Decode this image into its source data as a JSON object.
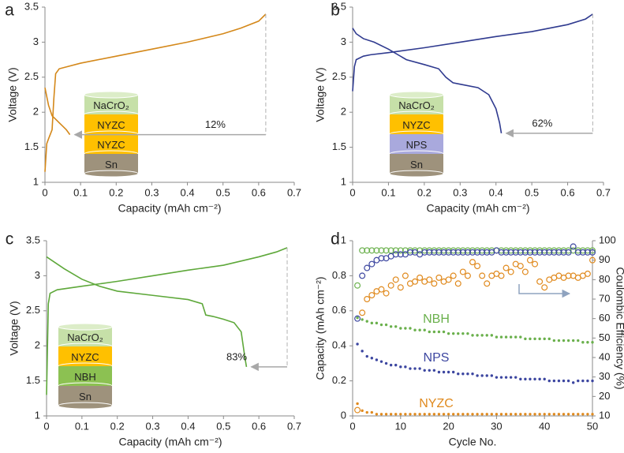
{
  "chart_data": [
    {
      "type": "line",
      "label": "a",
      "xlabel": "Capacity (mAh cm⁻²)",
      "ylabel": "Voltage (V)",
      "xlim": [
        0,
        0.7
      ],
      "ylim": [
        1,
        3.5
      ],
      "xticks": [
        0,
        0.1,
        0.2,
        0.3,
        0.4,
        0.5,
        0.6,
        0.7
      ],
      "yticks": [
        1,
        1.5,
        2,
        2.5,
        3,
        3.5
      ],
      "annotation": "12%",
      "stack": [
        {
          "label": "NaCrO₂",
          "color": "#c6e0a8"
        },
        {
          "label": "NYZC",
          "color": "#ffc000"
        },
        {
          "label": "NYZC",
          "color": "#ffc000"
        },
        {
          "label": "Sn",
          "color": "#9e927c"
        }
      ],
      "series": [
        {
          "color": "#d4881a",
          "x": [
            0,
            0.005,
            0.01,
            0.02,
            0.025,
            0.03,
            0.04,
            0.1,
            0.2,
            0.3,
            0.4,
            0.5,
            0.55,
            0.6,
            0.62
          ],
          "values": [
            1.15,
            1.55,
            1.62,
            1.75,
            2.2,
            2.55,
            2.62,
            2.7,
            2.8,
            2.9,
            3.0,
            3.12,
            3.2,
            3.3,
            3.4
          ]
        },
        {
          "color": "#d4881a",
          "x": [
            0,
            0.01,
            0.02,
            0.03,
            0.04,
            0.05,
            0.06,
            0.07
          ],
          "values": [
            2.35,
            2.1,
            1.95,
            1.9,
            1.85,
            1.8,
            1.75,
            1.68
          ]
        }
      ]
    },
    {
      "type": "line",
      "label": "b",
      "xlabel": "Capacity (mAh cm⁻²)",
      "ylabel": "Voltage (V)",
      "xlim": [
        0,
        0.7
      ],
      "ylim": [
        1,
        3.5
      ],
      "xticks": [
        0,
        0.1,
        0.2,
        0.3,
        0.4,
        0.5,
        0.6,
        0.7
      ],
      "yticks": [
        1,
        1.5,
        2,
        2.5,
        3,
        3.5
      ],
      "annotation": "62%",
      "stack": [
        {
          "label": "NaCrO₂",
          "color": "#c6e0a8"
        },
        {
          "label": "NYZC",
          "color": "#ffc000"
        },
        {
          "label": "NPS",
          "color": "#a9a9dd"
        },
        {
          "label": "Sn",
          "color": "#9e927c"
        }
      ],
      "series": [
        {
          "color": "#2f3a8f",
          "x": [
            0,
            0.005,
            0.01,
            0.03,
            0.05,
            0.1,
            0.2,
            0.3,
            0.4,
            0.5,
            0.6,
            0.65,
            0.67
          ],
          "values": [
            2.3,
            2.65,
            2.75,
            2.8,
            2.82,
            2.85,
            2.92,
            3.0,
            3.08,
            3.15,
            3.25,
            3.33,
            3.4
          ]
        },
        {
          "color": "#2f3a8f",
          "x": [
            0,
            0.01,
            0.03,
            0.06,
            0.1,
            0.15,
            0.2,
            0.24,
            0.26,
            0.28,
            0.3,
            0.35,
            0.38,
            0.4,
            0.41,
            0.415
          ],
          "values": [
            3.2,
            3.12,
            3.05,
            3.0,
            2.9,
            2.75,
            2.68,
            2.62,
            2.5,
            2.42,
            2.4,
            2.35,
            2.25,
            2.05,
            1.85,
            1.7
          ]
        }
      ]
    },
    {
      "type": "line",
      "label": "c",
      "xlabel": "Capacity (mAh cm⁻²)",
      "ylabel": "Voltage (V)",
      "xlim": [
        0,
        0.7
      ],
      "ylim": [
        1,
        3.5
      ],
      "xticks": [
        0,
        0.1,
        0.2,
        0.3,
        0.4,
        0.5,
        0.6,
        0.7
      ],
      "yticks": [
        1,
        1.5,
        2,
        2.5,
        3,
        3.5
      ],
      "annotation": "83%",
      "stack": [
        {
          "label": "NaCrO₂",
          "color": "#c6e0a8"
        },
        {
          "label": "NYZC",
          "color": "#ffc000"
        },
        {
          "label": "NBH",
          "color": "#8cc152"
        },
        {
          "label": "Sn",
          "color": "#9e927c"
        }
      ],
      "series": [
        {
          "color": "#5ea83a",
          "x": [
            0,
            0.005,
            0.01,
            0.03,
            0.1,
            0.2,
            0.3,
            0.4,
            0.5,
            0.6,
            0.65,
            0.68
          ],
          "values": [
            1.3,
            2.6,
            2.75,
            2.8,
            2.85,
            2.92,
            3.0,
            3.08,
            3.15,
            3.27,
            3.34,
            3.4
          ]
        },
        {
          "color": "#5ea83a",
          "x": [
            0,
            0.05,
            0.1,
            0.15,
            0.2,
            0.3,
            0.4,
            0.44,
            0.45,
            0.47,
            0.5,
            0.53,
            0.55,
            0.56,
            0.565
          ],
          "values": [
            3.27,
            3.1,
            2.95,
            2.85,
            2.78,
            2.72,
            2.66,
            2.6,
            2.44,
            2.42,
            2.38,
            2.33,
            2.2,
            1.85,
            1.7
          ]
        }
      ]
    },
    {
      "type": "scatter",
      "label": "d",
      "xlabel": "Cycle No.",
      "ylabel": "Capacity (mAh cm⁻²)",
      "y2label": "Coulombic Efficiency (%)",
      "xlim": [
        0,
        50
      ],
      "ylim": [
        0,
        1
      ],
      "y2lim": [
        10,
        100
      ],
      "xticks": [
        0,
        10,
        20,
        30,
        40,
        50
      ],
      "yticks": [
        0,
        0.2,
        0.4,
        0.6,
        0.8,
        1
      ],
      "y2ticks": [
        10,
        20,
        30,
        40,
        50,
        60,
        70,
        80,
        90,
        100
      ],
      "x": [
        1,
        2,
        3,
        4,
        5,
        6,
        7,
        8,
        9,
        10,
        11,
        12,
        13,
        14,
        15,
        16,
        17,
        18,
        19,
        20,
        21,
        22,
        23,
        24,
        25,
        26,
        27,
        28,
        29,
        30,
        31,
        32,
        33,
        34,
        35,
        36,
        37,
        38,
        39,
        40,
        41,
        42,
        43,
        44,
        45,
        46,
        47,
        48,
        49,
        50
      ],
      "series": [
        {
          "name": "NBH",
          "color": "#6ab04c",
          "values": [
            0.56,
            0.55,
            0.54,
            0.53,
            0.53,
            0.52,
            0.52,
            0.51,
            0.51,
            0.5,
            0.5,
            0.5,
            0.49,
            0.49,
            0.49,
            0.48,
            0.48,
            0.48,
            0.48,
            0.47,
            0.47,
            0.47,
            0.47,
            0.47,
            0.46,
            0.46,
            0.46,
            0.46,
            0.46,
            0.45,
            0.45,
            0.45,
            0.45,
            0.45,
            0.45,
            0.44,
            0.44,
            0.44,
            0.44,
            0.44,
            0.44,
            0.43,
            0.43,
            0.43,
            0.43,
            0.43,
            0.43,
            0.42,
            0.42,
            0.42
          ]
        },
        {
          "name": "NPS",
          "color": "#3c46a0",
          "values": [
            0.41,
            0.37,
            0.34,
            0.33,
            0.32,
            0.31,
            0.3,
            0.29,
            0.29,
            0.28,
            0.28,
            0.27,
            0.27,
            0.27,
            0.26,
            0.26,
            0.26,
            0.25,
            0.25,
            0.25,
            0.25,
            0.24,
            0.24,
            0.24,
            0.24,
            0.23,
            0.23,
            0.23,
            0.23,
            0.22,
            0.22,
            0.22,
            0.22,
            0.22,
            0.21,
            0.21,
            0.21,
            0.21,
            0.21,
            0.21,
            0.2,
            0.2,
            0.2,
            0.2,
            0.2,
            0.19,
            0.2,
            0.2,
            0.2,
            0.2
          ]
        },
        {
          "name": "NYZC",
          "color": "#e08a1e",
          "values": [
            0.07,
            0.03,
            0.02,
            0.02,
            0.01,
            0.01,
            0.01,
            0.01,
            0.01,
            0.01,
            0.01,
            0.01,
            0.01,
            0.01,
            0.01,
            0.01,
            0.01,
            0.01,
            0.01,
            0.01,
            0.01,
            0.01,
            0.01,
            0.01,
            0.01,
            0.01,
            0.01,
            0.01,
            0.01,
            0.01,
            0.01,
            0.01,
            0.01,
            0.01,
            0.01,
            0.01,
            0.01,
            0.01,
            0.01,
            0.01,
            0.01,
            0.01,
            0.01,
            0.01,
            0.01,
            0.01,
            0.01,
            0.01,
            0.01,
            0.01
          ]
        },
        {
          "color": "#6ab04c",
          "axis": "y2",
          "values": [
            77,
            95,
            95,
            95,
            95,
            95,
            95,
            95,
            95,
            95,
            95,
            95,
            95,
            95,
            95,
            95,
            95,
            95,
            95,
            95,
            95,
            95,
            95,
            95,
            95,
            95,
            95,
            95,
            95,
            95,
            95,
            95,
            95,
            95,
            95,
            95,
            95,
            95,
            95,
            95,
            95,
            95,
            95,
            95,
            95,
            95,
            95,
            95,
            95,
            95
          ]
        },
        {
          "color": "#3c46a0",
          "axis": "y2",
          "values": [
            60,
            82,
            86,
            88,
            90,
            91,
            91,
            92,
            93,
            93,
            93,
            94,
            94,
            93,
            94,
            94,
            94,
            94,
            94,
            94,
            94,
            94,
            94,
            94,
            94,
            94,
            94,
            94,
            94,
            95,
            94,
            94,
            94,
            94,
            94,
            94,
            94,
            94,
            94,
            94,
            94,
            94,
            94,
            94,
            94,
            97,
            94,
            94,
            94,
            94
          ]
        },
        {
          "color": "#e08a1e",
          "axis": "y2",
          "values": [
            13,
            63,
            70,
            72,
            74,
            75,
            73,
            77,
            80,
            76,
            82,
            78,
            79,
            81,
            79,
            80,
            78,
            81,
            79,
            80,
            82,
            78,
            84,
            82,
            89,
            87,
            82,
            78,
            82,
            83,
            82,
            86,
            84,
            88,
            87,
            84,
            90,
            88,
            79,
            76,
            80,
            81,
            82,
            81,
            82,
            82,
            81,
            82,
            83,
            90
          ]
        }
      ]
    }
  ]
}
